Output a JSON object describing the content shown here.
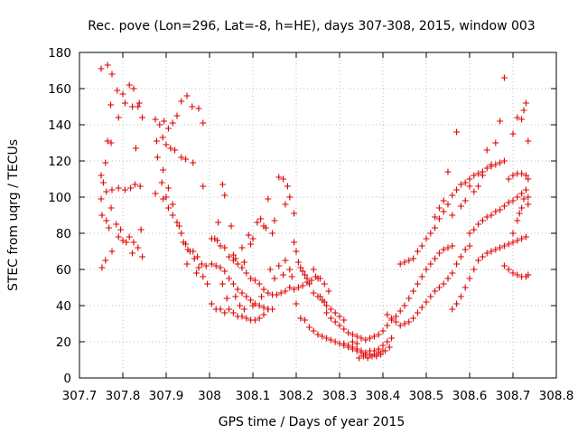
{
  "chart_data": {
    "type": "scatter",
    "title": "Rec. pove (Lon=296, Lat=-8, h=HE), days 307-308, 2015, window 003",
    "xlabel": "GPS time / Days of year 2015",
    "ylabel": "STEC from uqrg / TECUs",
    "xlim": [
      307.7,
      308.8
    ],
    "ylim": [
      0,
      180
    ],
    "xticks": [
      "307.7",
      "307.8",
      "307.9",
      "308",
      "308.1",
      "308.2",
      "308.3",
      "308.4",
      "308.5",
      "308.6",
      "308.7",
      "308.8"
    ],
    "yticks": [
      "0",
      "20",
      "40",
      "60",
      "80",
      "100",
      "120",
      "140",
      "160",
      "180"
    ],
    "grid": true,
    "marker": "+",
    "color": "#dd0000",
    "points": [
      [
        307.75,
        171
      ],
      [
        307.765,
        173
      ],
      [
        307.775,
        168
      ],
      [
        307.787,
        159
      ],
      [
        307.8,
        157
      ],
      [
        307.815,
        162
      ],
      [
        307.825,
        160
      ],
      [
        307.838,
        152
      ],
      [
        307.805,
        152
      ],
      [
        307.822,
        150
      ],
      [
        307.835,
        150
      ],
      [
        307.772,
        151
      ],
      [
        307.79,
        144
      ],
      [
        307.845,
        144
      ],
      [
        307.75,
        112
      ],
      [
        307.755,
        108
      ],
      [
        307.75,
        99
      ],
      [
        307.76,
        119
      ],
      [
        307.765,
        131
      ],
      [
        307.773,
        130
      ],
      [
        307.762,
        103
      ],
      [
        307.775,
        104
      ],
      [
        307.79,
        105
      ],
      [
        307.805,
        104
      ],
      [
        307.818,
        105
      ],
      [
        307.828,
        107
      ],
      [
        307.84,
        106
      ],
      [
        307.83,
        127
      ],
      [
        307.752,
        90
      ],
      [
        307.762,
        87
      ],
      [
        307.773,
        94
      ],
      [
        307.785,
        85
      ],
      [
        307.795,
        82
      ],
      [
        307.79,
        78
      ],
      [
        307.8,
        76
      ],
      [
        307.815,
        78
      ],
      [
        307.808,
        75
      ],
      [
        307.825,
        75
      ],
      [
        307.835,
        72
      ],
      [
        307.822,
        69
      ],
      [
        307.845,
        67
      ],
      [
        307.842,
        82
      ],
      [
        307.768,
        83
      ],
      [
        307.775,
        70
      ],
      [
        307.76,
        65
      ],
      [
        307.752,
        61
      ],
      [
        307.875,
        143
      ],
      [
        307.885,
        140
      ],
      [
        307.895,
        142
      ],
      [
        307.905,
        138
      ],
      [
        307.915,
        141
      ],
      [
        307.925,
        145
      ],
      [
        307.935,
        153
      ],
      [
        307.948,
        156
      ],
      [
        307.96,
        150
      ],
      [
        307.975,
        149
      ],
      [
        307.985,
        141
      ],
      [
        307.878,
        131
      ],
      [
        307.892,
        133
      ],
      [
        307.9,
        129
      ],
      [
        307.91,
        127
      ],
      [
        307.92,
        126
      ],
      [
        307.935,
        122
      ],
      [
        307.945,
        121
      ],
      [
        307.962,
        119
      ],
      [
        307.88,
        122
      ],
      [
        307.893,
        115
      ],
      [
        307.89,
        108
      ],
      [
        307.905,
        105
      ],
      [
        307.9,
        100
      ],
      [
        307.915,
        96
      ],
      [
        307.985,
        106
      ],
      [
        307.875,
        102
      ],
      [
        307.893,
        99
      ],
      [
        307.905,
        94
      ],
      [
        307.915,
        90
      ],
      [
        307.925,
        86
      ],
      [
        307.935,
        80
      ],
      [
        307.945,
        74
      ],
      [
        307.955,
        70
      ],
      [
        307.965,
        66
      ],
      [
        307.975,
        61
      ],
      [
        307.985,
        56
      ],
      [
        307.995,
        52
      ],
      [
        307.93,
        84
      ],
      [
        307.94,
        75
      ],
      [
        307.95,
        71
      ],
      [
        307.962,
        70
      ],
      [
        307.972,
        67
      ],
      [
        307.982,
        63
      ],
      [
        307.992,
        62
      ],
      [
        307.948,
        63
      ],
      [
        307.97,
        58
      ],
      [
        308.03,
        107
      ],
      [
        308.035,
        101
      ],
      [
        308.02,
        86
      ],
      [
        308.05,
        84
      ],
      [
        308.055,
        68
      ],
      [
        308.06,
        66
      ],
      [
        308.075,
        72
      ],
      [
        308.08,
        64
      ],
      [
        308.09,
        79
      ],
      [
        308.095,
        74
      ],
      [
        308.1,
        77
      ],
      [
        308.11,
        86
      ],
      [
        308.118,
        88
      ],
      [
        308.125,
        84
      ],
      [
        308.13,
        83
      ],
      [
        308.135,
        99
      ],
      [
        308.145,
        80
      ],
      [
        308.15,
        87
      ],
      [
        308.16,
        111
      ],
      [
        308.17,
        110
      ],
      [
        308.175,
        96
      ],
      [
        308.18,
        106
      ],
      [
        308.185,
        100
      ],
      [
        308.195,
        91
      ],
      [
        308.005,
        77
      ],
      [
        308.012,
        77
      ],
      [
        308.018,
        76
      ],
      [
        308.025,
        73
      ],
      [
        308.035,
        72
      ],
      [
        308.045,
        67
      ],
      [
        308.055,
        65
      ],
      [
        308.065,
        63
      ],
      [
        308.075,
        61
      ],
      [
        308.085,
        58
      ],
      [
        308.095,
        55
      ],
      [
        308.105,
        54
      ],
      [
        308.115,
        52
      ],
      [
        308.125,
        49
      ],
      [
        308.135,
        47
      ],
      [
        308.145,
        46
      ],
      [
        308.155,
        46
      ],
      [
        308.165,
        47
      ],
      [
        308.175,
        48
      ],
      [
        308.185,
        50
      ],
      [
        308.195,
        49
      ],
      [
        308.205,
        50
      ],
      [
        308.215,
        51
      ],
      [
        308.225,
        53
      ],
      [
        308.235,
        54
      ],
      [
        308.245,
        56
      ],
      [
        308.255,
        55
      ],
      [
        308.265,
        52
      ],
      [
        308.275,
        48
      ],
      [
        308.005,
        63
      ],
      [
        308.015,
        62
      ],
      [
        308.025,
        61
      ],
      [
        308.035,
        59
      ],
      [
        308.045,
        55
      ],
      [
        308.055,
        52
      ],
      [
        308.065,
        49
      ],
      [
        308.075,
        47
      ],
      [
        308.085,
        45
      ],
      [
        308.095,
        43
      ],
      [
        308.105,
        41
      ],
      [
        308.115,
        40
      ],
      [
        308.125,
        39
      ],
      [
        308.135,
        38
      ],
      [
        308.145,
        38
      ],
      [
        308.005,
        41
      ],
      [
        308.015,
        38
      ],
      [
        308.025,
        38
      ],
      [
        308.035,
        36
      ],
      [
        308.045,
        38
      ],
      [
        308.055,
        36
      ],
      [
        308.065,
        34
      ],
      [
        308.075,
        34
      ],
      [
        308.085,
        33
      ],
      [
        308.095,
        32
      ],
      [
        308.105,
        32
      ],
      [
        308.115,
        33
      ],
      [
        308.125,
        35
      ],
      [
        308.135,
        38
      ],
      [
        308.03,
        52
      ],
      [
        308.04,
        44
      ],
      [
        308.06,
        45
      ],
      [
        308.07,
        40
      ],
      [
        308.08,
        38
      ],
      [
        308.1,
        40
      ],
      [
        308.12,
        45
      ],
      [
        308.14,
        60
      ],
      [
        308.15,
        55
      ],
      [
        308.16,
        62
      ],
      [
        308.17,
        57
      ],
      [
        308.175,
        65
      ],
      [
        308.185,
        60
      ],
      [
        308.19,
        56
      ],
      [
        308.195,
        75
      ],
      [
        308.2,
        70
      ],
      [
        308.205,
        64
      ],
      [
        308.21,
        61
      ],
      [
        308.215,
        59
      ],
      [
        308.22,
        57
      ],
      [
        308.225,
        55
      ],
      [
        308.23,
        52
      ],
      [
        308.24,
        47
      ],
      [
        308.25,
        45
      ],
      [
        308.26,
        43
      ],
      [
        308.27,
        40
      ],
      [
        308.28,
        38
      ],
      [
        308.29,
        36
      ],
      [
        308.3,
        34
      ],
      [
        308.31,
        32
      ],
      [
        308.2,
        41
      ],
      [
        308.21,
        33
      ],
      [
        308.22,
        32
      ],
      [
        308.23,
        28
      ],
      [
        308.24,
        26
      ],
      [
        308.25,
        24
      ],
      [
        308.26,
        23
      ],
      [
        308.27,
        22
      ],
      [
        308.28,
        21
      ],
      [
        308.29,
        20
      ],
      [
        308.3,
        19
      ],
      [
        308.31,
        18
      ],
      [
        308.32,
        17
      ],
      [
        308.33,
        16
      ],
      [
        308.34,
        15
      ],
      [
        308.35,
        14
      ],
      [
        308.36,
        13
      ],
      [
        308.37,
        13
      ],
      [
        308.38,
        13
      ],
      [
        308.39,
        14
      ],
      [
        308.4,
        15
      ],
      [
        308.24,
        60
      ],
      [
        308.25,
        55
      ],
      [
        308.255,
        45
      ],
      [
        308.265,
        42
      ],
      [
        308.27,
        36
      ],
      [
        308.28,
        33
      ],
      [
        308.29,
        31
      ],
      [
        308.3,
        29
      ],
      [
        308.31,
        27
      ],
      [
        308.32,
        25
      ],
      [
        308.33,
        24
      ],
      [
        308.34,
        23
      ],
      [
        308.35,
        22
      ],
      [
        308.36,
        21
      ],
      [
        308.37,
        22
      ],
      [
        308.38,
        23
      ],
      [
        308.39,
        24
      ],
      [
        308.31,
        19
      ],
      [
        308.32,
        18
      ],
      [
        308.33,
        17
      ],
      [
        308.34,
        16
      ],
      [
        308.35,
        15
      ],
      [
        308.36,
        14
      ],
      [
        308.37,
        15
      ],
      [
        308.38,
        15
      ],
      [
        308.39,
        16
      ],
      [
        308.4,
        18
      ],
      [
        308.41,
        20
      ],
      [
        308.42,
        22
      ],
      [
        308.345,
        11
      ],
      [
        308.355,
        12
      ],
      [
        308.365,
        11
      ],
      [
        308.375,
        12
      ],
      [
        308.385,
        12
      ],
      [
        308.33,
        20
      ],
      [
        308.34,
        19
      ],
      [
        308.395,
        13
      ],
      [
        308.405,
        15
      ],
      [
        308.415,
        17
      ],
      [
        308.4,
        26
      ],
      [
        308.41,
        29
      ],
      [
        308.42,
        32
      ],
      [
        308.43,
        34
      ],
      [
        308.44,
        37
      ],
      [
        308.45,
        40
      ],
      [
        308.46,
        44
      ],
      [
        308.47,
        48
      ],
      [
        308.48,
        52
      ],
      [
        308.49,
        56
      ],
      [
        308.5,
        60
      ],
      [
        308.51,
        63
      ],
      [
        308.52,
        66
      ],
      [
        308.53,
        69
      ],
      [
        308.54,
        71
      ],
      [
        308.55,
        72
      ],
      [
        308.56,
        73
      ],
      [
        308.41,
        35
      ],
      [
        308.42,
        33
      ],
      [
        308.43,
        31
      ],
      [
        308.44,
        29
      ],
      [
        308.45,
        30
      ],
      [
        308.46,
        31
      ],
      [
        308.47,
        33
      ],
      [
        308.48,
        36
      ],
      [
        308.49,
        39
      ],
      [
        308.5,
        42
      ],
      [
        308.51,
        45
      ],
      [
        308.52,
        48
      ],
      [
        308.53,
        50
      ],
      [
        308.54,
        52
      ],
      [
        308.55,
        55
      ],
      [
        308.56,
        58
      ],
      [
        308.57,
        63
      ],
      [
        308.58,
        67
      ],
      [
        308.59,
        71
      ],
      [
        308.6,
        73
      ],
      [
        308.44,
        63
      ],
      [
        308.45,
        64
      ],
      [
        308.46,
        65
      ],
      [
        308.47,
        66
      ],
      [
        308.48,
        70
      ],
      [
        308.49,
        73
      ],
      [
        308.5,
        77
      ],
      [
        308.51,
        80
      ],
      [
        308.52,
        83
      ],
      [
        308.53,
        88
      ],
      [
        308.54,
        92
      ],
      [
        308.55,
        96
      ],
      [
        308.56,
        101
      ],
      [
        308.57,
        104
      ],
      [
        308.58,
        107
      ],
      [
        308.59,
        108
      ],
      [
        308.6,
        110
      ],
      [
        308.61,
        112
      ],
      [
        308.62,
        113
      ],
      [
        308.63,
        114
      ],
      [
        308.64,
        116
      ],
      [
        308.65,
        117
      ],
      [
        308.66,
        118
      ],
      [
        308.67,
        119
      ],
      [
        308.68,
        120
      ],
      [
        308.52,
        89
      ],
      [
        308.53,
        94
      ],
      [
        308.54,
        98
      ],
      [
        308.55,
        114
      ],
      [
        308.56,
        90
      ],
      [
        308.57,
        136
      ],
      [
        308.58,
        95
      ],
      [
        308.59,
        98
      ],
      [
        308.6,
        106
      ],
      [
        308.61,
        103
      ],
      [
        308.62,
        106
      ],
      [
        308.63,
        112
      ],
      [
        308.64,
        126
      ],
      [
        308.65,
        118
      ],
      [
        308.66,
        130
      ],
      [
        308.67,
        142
      ],
      [
        308.68,
        166
      ],
      [
        308.56,
        38
      ],
      [
        308.57,
        41
      ],
      [
        308.58,
        45
      ],
      [
        308.59,
        50
      ],
      [
        308.6,
        55
      ],
      [
        308.61,
        60
      ],
      [
        308.62,
        65
      ],
      [
        308.63,
        67
      ],
      [
        308.64,
        69
      ],
      [
        308.65,
        70
      ],
      [
        308.66,
        71
      ],
      [
        308.67,
        72
      ],
      [
        308.68,
        73
      ],
      [
        308.69,
        74
      ],
      [
        308.7,
        75
      ],
      [
        308.71,
        76
      ],
      [
        308.72,
        77
      ],
      [
        308.73,
        78
      ],
      [
        308.6,
        80
      ],
      [
        308.61,
        82
      ],
      [
        308.62,
        85
      ],
      [
        308.63,
        87
      ],
      [
        308.64,
        89
      ],
      [
        308.65,
        90
      ],
      [
        308.66,
        92
      ],
      [
        308.67,
        93
      ],
      [
        308.68,
        95
      ],
      [
        308.69,
        97
      ],
      [
        308.7,
        98
      ],
      [
        308.71,
        100
      ],
      [
        308.72,
        102
      ],
      [
        308.73,
        104
      ],
      [
        308.68,
        62
      ],
      [
        308.69,
        60
      ],
      [
        308.7,
        58
      ],
      [
        308.71,
        57
      ],
      [
        308.72,
        56
      ],
      [
        308.73,
        56
      ],
      [
        308.735,
        57
      ],
      [
        308.69,
        110
      ],
      [
        308.7,
        112
      ],
      [
        308.71,
        113
      ],
      [
        308.72,
        113
      ],
      [
        308.73,
        112
      ],
      [
        308.735,
        110
      ],
      [
        308.7,
        135
      ],
      [
        308.71,
        144
      ],
      [
        308.72,
        143
      ],
      [
        308.725,
        148
      ],
      [
        308.73,
        152
      ],
      [
        308.735,
        131
      ],
      [
        308.7,
        80
      ],
      [
        308.71,
        87
      ],
      [
        308.715,
        91
      ],
      [
        308.72,
        94
      ],
      [
        308.725,
        99
      ],
      [
        308.735,
        96
      ],
      [
        308.735,
        100
      ]
    ]
  }
}
